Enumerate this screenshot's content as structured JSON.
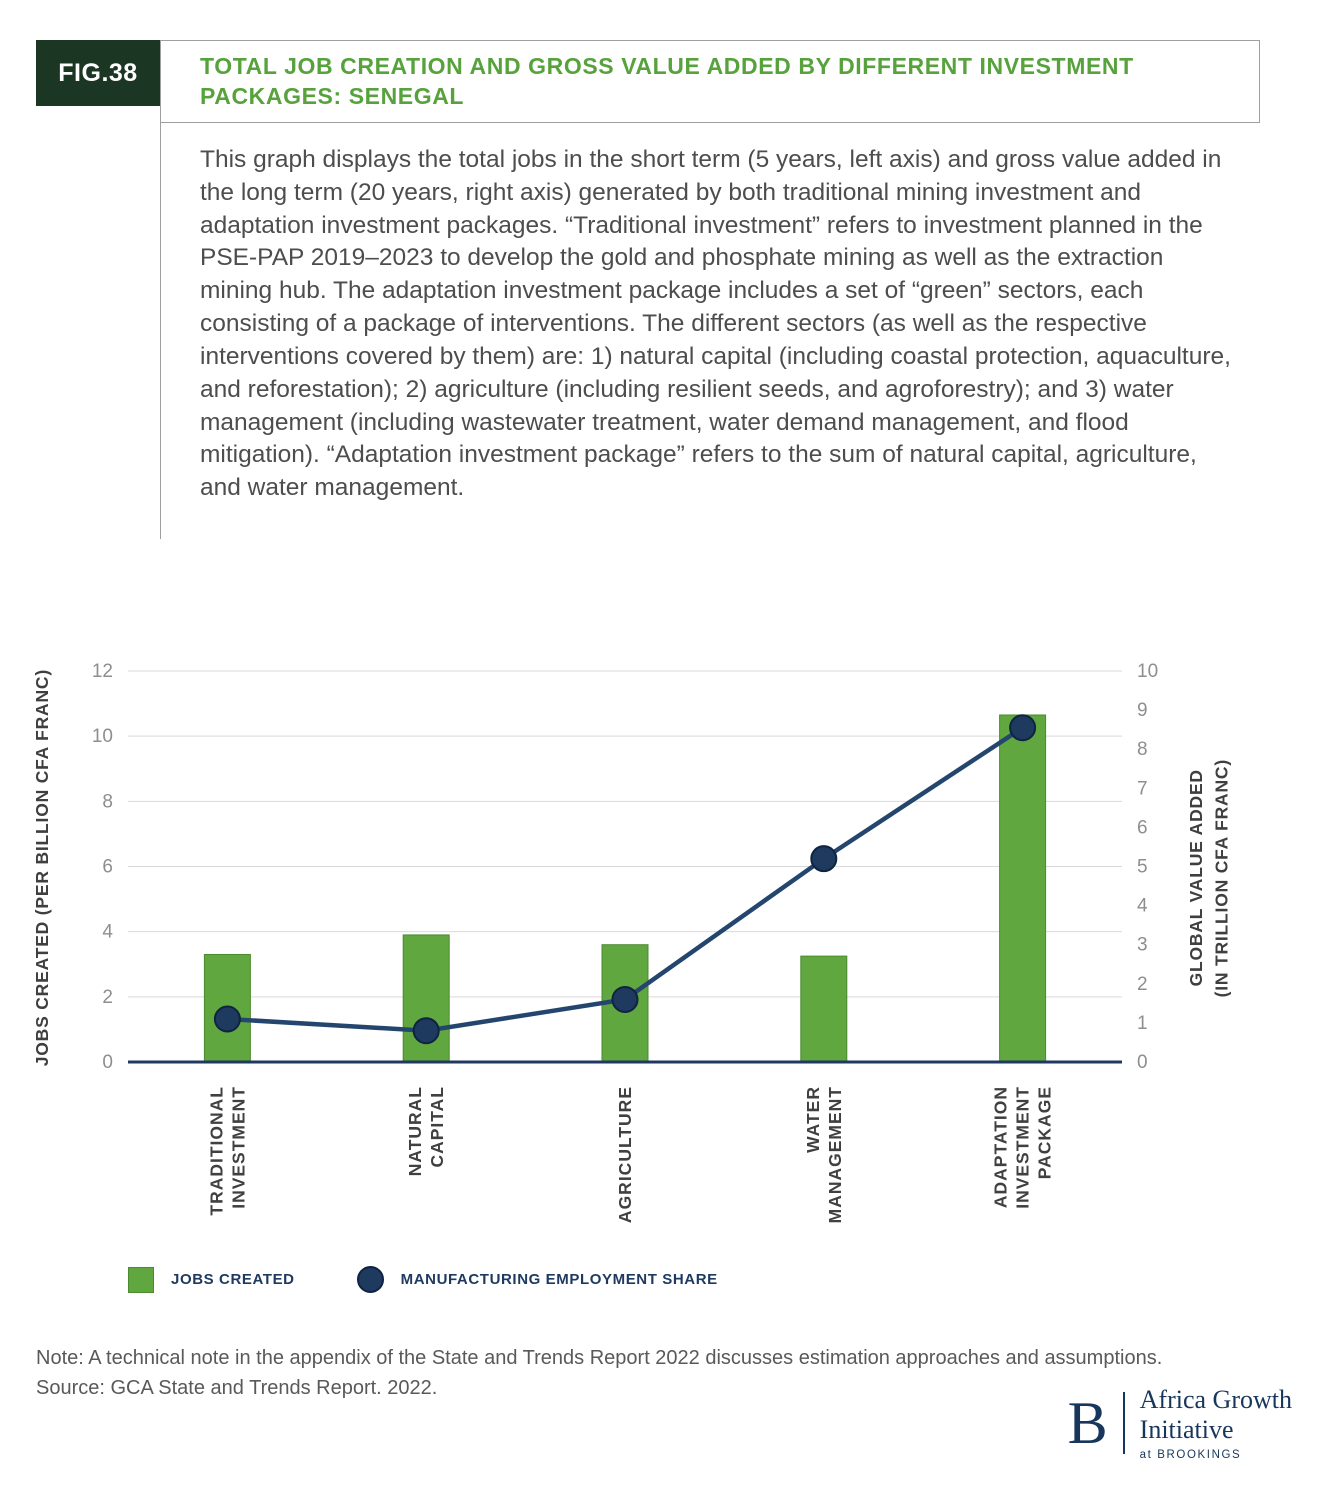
{
  "figure": {
    "badge": "FIG.38",
    "title": "TOTAL JOB CREATION AND GROSS VALUE ADDED BY DIFFERENT INVESTMENT PACKAGES: SENEGAL",
    "description": "This graph displays the total jobs in the short term (5 years, left axis) and gross value added in the long term (20 years, right axis) generated by both traditional mining investment and adaptation investment packages. “Traditional investment” refers to investment planned in the PSE-PAP 2019–2023 to develop the gold and phosphate mining as well as the extraction mining hub. The adaptation investment package includes a set of “green” sectors, each consisting of a package of interventions. The different sectors (as well as the respective interventions covered by them) are: 1) natural capital (including coastal protection, aquaculture, and reforestation); 2) agriculture (including resilient seeds, and agroforestry); and 3) water management (including wastewater treatment, water demand management, and flood mitigation). “Adaptation investment package” refers to the sum of natural capital, agriculture, and water management."
  },
  "chart_data": {
    "type": "bar+line",
    "categories": [
      "TRADITIONAL\nINVESTMENT",
      "NATURAL\nCAPITAL",
      "AGRICULTURE",
      "WATER\nMANAGEMENT",
      "ADAPTATION\nINVESTMENT\nPACKAGE"
    ],
    "series": [
      {
        "name": "JOBS CREATED",
        "type": "bar",
        "axis": "left",
        "values": [
          3.3,
          3.9,
          3.6,
          3.25,
          10.65
        ],
        "color": "#61a73f",
        "border": "#4c8a30"
      },
      {
        "name": "MANUFACTURING EMPLOYMENT SHARE",
        "type": "line",
        "axis": "right",
        "values": [
          1.1,
          0.8,
          1.6,
          5.2,
          8.55
        ],
        "color": "#24466e",
        "dot_color": "#1e3a5f",
        "dot_border": "#0f2440"
      }
    ],
    "left_axis": {
      "label": "JOBS CREATED (PER BILLION CFA FRANC)",
      "min": 0,
      "max": 12,
      "ticks": [
        0,
        2,
        4,
        6,
        8,
        10,
        12
      ]
    },
    "right_axis": {
      "label": "GLOBAL VALUE ADDED\n(IN TRILLION CFA FRANC)",
      "min": 0,
      "max": 10,
      "ticks": [
        0,
        1,
        2,
        3,
        4,
        5,
        6,
        7,
        8,
        9,
        10
      ]
    },
    "grid": true,
    "legend_position": "bottom-left"
  },
  "legend": {
    "items": [
      {
        "label": "JOBS CREATED",
        "swatch": "square",
        "color": "#61a73f"
      },
      {
        "label": "MANUFACTURING EMPLOYMENT SHARE",
        "swatch": "circle",
        "color": "#1e3a5f"
      }
    ]
  },
  "footer": {
    "note": "Note: A technical note in the appendix of the State and Trends Report 2022 discusses estimation approaches and assumptions.",
    "source": "Source: GCA State and Trends Report. 2022.",
    "logo": {
      "letter": "B",
      "line1": "Africa Growth",
      "line2": "Initiative",
      "line3": "at BROOKINGS"
    }
  },
  "colors": {
    "accent_green": "#57a23c",
    "badge_green": "#1b3723",
    "navy": "#1f3a60",
    "grid": "#d9d9d9",
    "tick_text": "#8e8e8e"
  }
}
